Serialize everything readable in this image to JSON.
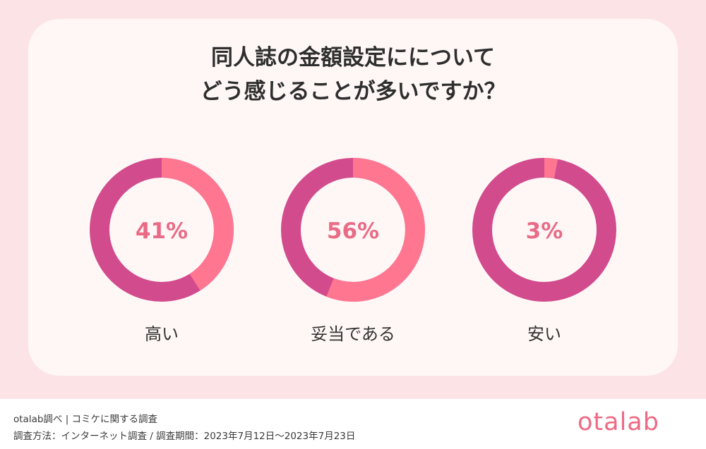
{
  "chart_data": {
    "type": "pie",
    "title_lines": [
      "同人誌の金額設定にについて",
      "どう感じることが多いですか？"
    ],
    "series": [
      {
        "name": "高い",
        "value": 41,
        "label": "41%"
      },
      {
        "name": "妥当である",
        "value": 56,
        "label": "56%"
      },
      {
        "name": "安い",
        "value": 3,
        "label": "3%"
      }
    ],
    "colors": {
      "highlight": "#ff7691",
      "remainder": "#d24b8d",
      "value_text": "#e96b86",
      "category_text": "#333333"
    }
  },
  "footer": {
    "source": "otalab調べ | コミケに関する調査",
    "method": "調査方法：インターネット調査 / 調査期間：2023年7月12日〜2023年7月23日",
    "logo_text": "otalab"
  }
}
